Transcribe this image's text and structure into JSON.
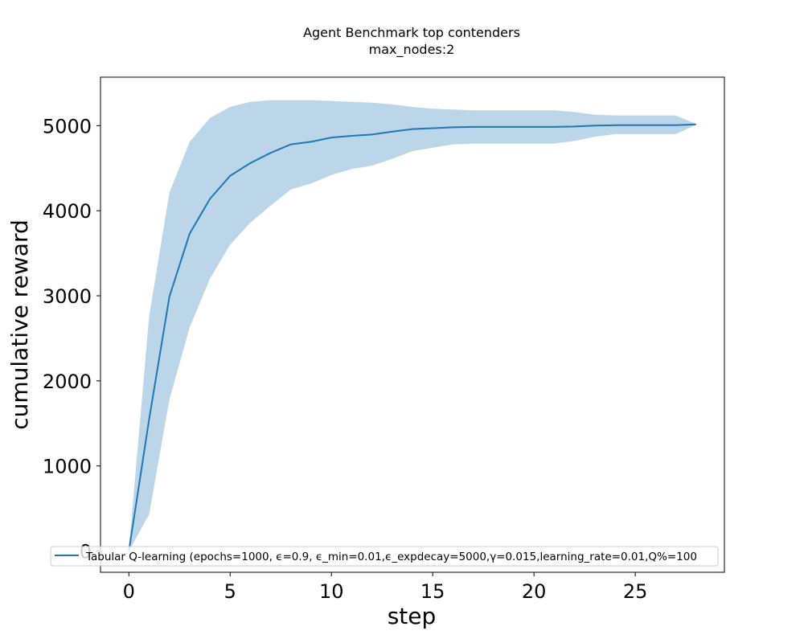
{
  "chart_data": {
    "type": "line",
    "title": "Agent Benchmark top contenders",
    "subtitle": "max_nodes:2",
    "xlabel": "step",
    "ylabel": "cumulative reward",
    "xlim": [
      -1.4,
      29.4
    ],
    "ylim": [
      -250,
      5570
    ],
    "xticks": [
      0,
      5,
      10,
      15,
      20,
      25
    ],
    "yticks": [
      0,
      1000,
      2000,
      3000,
      4000,
      5000
    ],
    "grid": false,
    "legend_position": "lower-left",
    "series": [
      {
        "name": "Tabular Q-learning (epochs=1000, ϵ=0.9, ϵ_min=0.01,ϵ_expdecay=5000,γ=0.015,learning_rate=0.01,Q%=100",
        "color": "#1f77b4",
        "band_color": "#1f77b4",
        "x": [
          0,
          1,
          2,
          3,
          4,
          5,
          6,
          7,
          8,
          9,
          10,
          11,
          12,
          13,
          14,
          15,
          16,
          17,
          18,
          19,
          20,
          21,
          22,
          23,
          24,
          25,
          26,
          27,
          28
        ],
        "mean": [
          0,
          1550,
          2990,
          3730,
          4140,
          4410,
          4560,
          4680,
          4780,
          4810,
          4860,
          4880,
          4895,
          4930,
          4960,
          4970,
          4980,
          4985,
          4985,
          4985,
          4985,
          4985,
          4990,
          5000,
          5005,
          5005,
          5005,
          5005,
          5015
        ],
        "upper": [
          20,
          2760,
          4210,
          4810,
          5090,
          5220,
          5280,
          5300,
          5300,
          5300,
          5290,
          5280,
          5270,
          5250,
          5220,
          5200,
          5190,
          5180,
          5180,
          5180,
          5180,
          5180,
          5160,
          5130,
          5120,
          5120,
          5120,
          5120,
          5020
        ],
        "lower": [
          0,
          430,
          1780,
          2630,
          3200,
          3600,
          3860,
          4060,
          4250,
          4320,
          4420,
          4490,
          4530,
          4610,
          4700,
          4740,
          4780,
          4790,
          4790,
          4790,
          4790,
          4790,
          4820,
          4870,
          4900,
          4900,
          4900,
          4900,
          5010
        ]
      }
    ]
  }
}
